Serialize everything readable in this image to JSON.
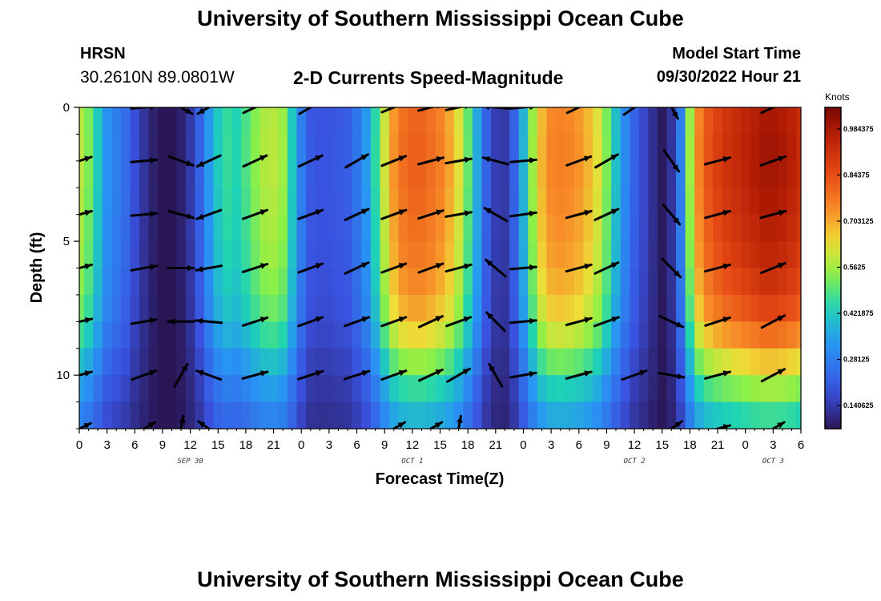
{
  "header": {
    "title": "University of Southern Mississippi Ocean Cube",
    "station": "HRSN",
    "coords": "30.2610N  89.0801W",
    "subtitle": "2-D Currents Speed-Magnitude",
    "model_start_label": "Model Start Time",
    "model_start_value": "09/30/2022 Hour 21"
  },
  "footer": {
    "title": "University of Southern Mississippi Ocean Cube"
  },
  "chart_data": {
    "type": "heatmap",
    "title": "2-D Currents Speed-Magnitude",
    "xlabel": "Forecast Time(Z)",
    "ylabel": "Depth (ft)",
    "xlim": [
      0,
      78
    ],
    "ylim": [
      12,
      0
    ],
    "x_ticks": [
      0,
      3,
      6,
      9,
      12,
      15,
      18,
      21,
      24,
      27,
      30,
      33,
      36,
      39,
      42,
      45,
      48,
      51,
      54,
      57,
      60,
      63,
      66,
      69,
      72,
      75,
      78
    ],
    "x_tick_labels": [
      "0",
      "3",
      "6",
      "9",
      "12",
      "15",
      "18",
      "21",
      "0",
      "3",
      "6",
      "9",
      "12",
      "15",
      "18",
      "21",
      "0",
      "3",
      "6",
      "9",
      "12",
      "15",
      "18",
      "21",
      "0",
      "3",
      "6"
    ],
    "y_ticks": [
      0,
      5,
      10
    ],
    "y_tick_labels": [
      "0",
      "5",
      "10"
    ],
    "date_labels": [
      {
        "text": "SEP 30",
        "hour": 12
      },
      {
        "text": "OCT 1",
        "hour": 36
      },
      {
        "text": "OCT 2",
        "hour": 60
      },
      {
        "text": "OCT 3",
        "hour": 75
      }
    ],
    "colorbar": {
      "unit": "Knots",
      "min": 0.07,
      "max": 1.05,
      "tick_values": [
        0.140625,
        0.28125,
        0.421875,
        0.5625,
        0.703125,
        0.84375,
        0.984375
      ],
      "tick_labels": [
        "0.140625",
        "0.28125",
        "0.421875",
        "0.5625",
        "0.703125",
        "0.84375",
        "0.984375"
      ]
    },
    "profile": [
      {
        "x": 0,
        "s": 0.58
      },
      {
        "x": 1,
        "s": 0.52
      },
      {
        "x": 2,
        "s": 0.42
      },
      {
        "x": 3,
        "s": 0.32
      },
      {
        "x": 4,
        "s": 0.28
      },
      {
        "x": 5,
        "s": 0.24
      },
      {
        "x": 6,
        "s": 0.18
      },
      {
        "x": 7,
        "s": 0.13
      },
      {
        "x": 8,
        "s": 0.09
      },
      {
        "x": 9,
        "s": 0.07
      },
      {
        "x": 10,
        "s": 0.07
      },
      {
        "x": 11,
        "s": 0.09
      },
      {
        "x": 12,
        "s": 0.14
      },
      {
        "x": 13,
        "s": 0.22
      },
      {
        "x": 14,
        "s": 0.33
      },
      {
        "x": 15,
        "s": 0.42
      },
      {
        "x": 16,
        "s": 0.46
      },
      {
        "x": 17,
        "s": 0.44
      },
      {
        "x": 18,
        "s": 0.48
      },
      {
        "x": 19,
        "s": 0.53
      },
      {
        "x": 20,
        "s": 0.57
      },
      {
        "x": 21,
        "s": 0.58
      },
      {
        "x": 22,
        "s": 0.55
      },
      {
        "x": 23,
        "s": 0.42
      },
      {
        "x": 24,
        "s": 0.28
      },
      {
        "x": 25,
        "s": 0.2
      },
      {
        "x": 26,
        "s": 0.19
      },
      {
        "x": 27,
        "s": 0.19
      },
      {
        "x": 28,
        "s": 0.2
      },
      {
        "x": 29,
        "s": 0.21
      },
      {
        "x": 30,
        "s": 0.26
      },
      {
        "x": 31,
        "s": 0.33
      },
      {
        "x": 32,
        "s": 0.45
      },
      {
        "x": 33,
        "s": 0.6
      },
      {
        "x": 34,
        "s": 0.72
      },
      {
        "x": 35,
        "s": 0.78
      },
      {
        "x": 36,
        "s": 0.8
      },
      {
        "x": 37,
        "s": 0.8
      },
      {
        "x": 38,
        "s": 0.78
      },
      {
        "x": 39,
        "s": 0.75
      },
      {
        "x": 40,
        "s": 0.7
      },
      {
        "x": 41,
        "s": 0.62
      },
      {
        "x": 42,
        "s": 0.5
      },
      {
        "x": 43,
        "s": 0.36
      },
      {
        "x": 44,
        "s": 0.22
      },
      {
        "x": 45,
        "s": 0.15
      },
      {
        "x": 46,
        "s": 0.14
      },
      {
        "x": 47,
        "s": 0.22
      },
      {
        "x": 48,
        "s": 0.38
      },
      {
        "x": 49,
        "s": 0.55
      },
      {
        "x": 50,
        "s": 0.68
      },
      {
        "x": 51,
        "s": 0.74
      },
      {
        "x": 52,
        "s": 0.75
      },
      {
        "x": 53,
        "s": 0.74
      },
      {
        "x": 54,
        "s": 0.72
      },
      {
        "x": 55,
        "s": 0.68
      },
      {
        "x": 56,
        "s": 0.62
      },
      {
        "x": 57,
        "s": 0.52
      },
      {
        "x": 58,
        "s": 0.4
      },
      {
        "x": 59,
        "s": 0.3
      },
      {
        "x": 60,
        "s": 0.22
      },
      {
        "x": 61,
        "s": 0.17
      },
      {
        "x": 62,
        "s": 0.12
      },
      {
        "x": 63,
        "s": 0.08
      },
      {
        "x": 64,
        "s": 0.13
      },
      {
        "x": 65,
        "s": 0.28
      },
      {
        "x": 66,
        "s": 0.55
      },
      {
        "x": 67,
        "s": 0.75
      },
      {
        "x": 68,
        "s": 0.83
      },
      {
        "x": 69,
        "s": 0.87
      },
      {
        "x": 70,
        "s": 0.9
      },
      {
        "x": 71,
        "s": 0.92
      },
      {
        "x": 72,
        "s": 0.94
      },
      {
        "x": 73,
        "s": 0.96
      },
      {
        "x": 74,
        "s": 0.98
      },
      {
        "x": 75,
        "s": 0.98
      },
      {
        "x": 76,
        "s": 0.97
      },
      {
        "x": 77,
        "s": 0.95
      },
      {
        "x": 78,
        "s": 0.92
      }
    ],
    "depth_factor": [
      {
        "depth": 0,
        "f": 1.0
      },
      {
        "depth": 2,
        "f": 1.02
      },
      {
        "depth": 4,
        "f": 0.99
      },
      {
        "depth": 6,
        "f": 0.95
      },
      {
        "depth": 8,
        "f": 0.85
      },
      {
        "depth": 9,
        "f": 0.72
      },
      {
        "depth": 10,
        "f": 0.6
      },
      {
        "depth": 11,
        "f": 0.48
      },
      {
        "depth": 12,
        "f": 0.4
      }
    ],
    "vectors": [
      {
        "x": 0,
        "depth": 2,
        "dir": 18
      },
      {
        "x": 0,
        "depth": 4,
        "dir": 15
      },
      {
        "x": 0,
        "depth": 6,
        "dir": 15
      },
      {
        "x": 0,
        "depth": 8,
        "dir": 12
      },
      {
        "x": 0,
        "depth": 10,
        "dir": 15
      },
      {
        "x": 0,
        "depth": 12,
        "dir": 25
      },
      {
        "x": 7,
        "depth": 0,
        "dir": 5
      },
      {
        "x": 7,
        "depth": 2,
        "dir": 5
      },
      {
        "x": 7,
        "depth": 4,
        "dir": 5
      },
      {
        "x": 7,
        "depth": 6,
        "dir": 10
      },
      {
        "x": 7,
        "depth": 8,
        "dir": 10
      },
      {
        "x": 7,
        "depth": 10,
        "dir": 20
      },
      {
        "x": 7,
        "depth": 12,
        "dir": 30
      },
      {
        "x": 11,
        "depth": 0,
        "dir": -30
      },
      {
        "x": 11,
        "depth": 2,
        "dir": -20
      },
      {
        "x": 11,
        "depth": 4,
        "dir": -15
      },
      {
        "x": 11,
        "depth": 6,
        "dir": 0
      },
      {
        "x": 11,
        "depth": 8,
        "dir": 180
      },
      {
        "x": 11,
        "depth": 10,
        "dir": 60
      },
      {
        "x": 11,
        "depth": 12,
        "dir": 80
      },
      {
        "x": 14,
        "depth": 0,
        "dir": -150
      },
      {
        "x": 14,
        "depth": 2,
        "dir": -155
      },
      {
        "x": 14,
        "depth": 4,
        "dir": -160
      },
      {
        "x": 14,
        "depth": 6,
        "dir": -170
      },
      {
        "x": 14,
        "depth": 8,
        "dir": 175
      },
      {
        "x": 14,
        "depth": 10,
        "dir": 160
      },
      {
        "x": 14,
        "depth": 12,
        "dir": 145
      },
      {
        "x": 19,
        "depth": 0,
        "dir": 25
      },
      {
        "x": 19,
        "depth": 2,
        "dir": 25
      },
      {
        "x": 19,
        "depth": 4,
        "dir": 20
      },
      {
        "x": 19,
        "depth": 6,
        "dir": 18
      },
      {
        "x": 19,
        "depth": 8,
        "dir": 18
      },
      {
        "x": 19,
        "depth": 10,
        "dir": 15
      },
      {
        "x": 25,
        "depth": 0,
        "dir": 30
      },
      {
        "x": 25,
        "depth": 2,
        "dir": 25
      },
      {
        "x": 25,
        "depth": 4,
        "dir": 20
      },
      {
        "x": 25,
        "depth": 6,
        "dir": 20
      },
      {
        "x": 25,
        "depth": 8,
        "dir": 20
      },
      {
        "x": 25,
        "depth": 10,
        "dir": 18
      },
      {
        "x": 30,
        "depth": 2,
        "dir": 30
      },
      {
        "x": 30,
        "depth": 4,
        "dir": 25
      },
      {
        "x": 30,
        "depth": 6,
        "dir": 25
      },
      {
        "x": 30,
        "depth": 8,
        "dir": 20
      },
      {
        "x": 30,
        "depth": 10,
        "dir": 18
      },
      {
        "x": 34,
        "depth": 0,
        "dir": 22
      },
      {
        "x": 34,
        "depth": 2,
        "dir": 22
      },
      {
        "x": 34,
        "depth": 4,
        "dir": 20
      },
      {
        "x": 34,
        "depth": 6,
        "dir": 20
      },
      {
        "x": 34,
        "depth": 8,
        "dir": 20
      },
      {
        "x": 34,
        "depth": 10,
        "dir": 20
      },
      {
        "x": 34,
        "depth": 12,
        "dir": 30
      },
      {
        "x": 38,
        "depth": 0,
        "dir": 15
      },
      {
        "x": 38,
        "depth": 2,
        "dir": 15
      },
      {
        "x": 38,
        "depth": 4,
        "dir": 18
      },
      {
        "x": 38,
        "depth": 6,
        "dir": 20
      },
      {
        "x": 38,
        "depth": 8,
        "dir": 25
      },
      {
        "x": 38,
        "depth": 10,
        "dir": 25
      },
      {
        "x": 38,
        "depth": 12,
        "dir": 30
      },
      {
        "x": 41,
        "depth": 0,
        "dir": 12
      },
      {
        "x": 41,
        "depth": 2,
        "dir": 10
      },
      {
        "x": 41,
        "depth": 4,
        "dir": 10
      },
      {
        "x": 41,
        "depth": 6,
        "dir": 15
      },
      {
        "x": 41,
        "depth": 8,
        "dir": 20
      },
      {
        "x": 41,
        "depth": 10,
        "dir": 30
      },
      {
        "x": 41,
        "depth": 12,
        "dir": 80
      },
      {
        "x": 45,
        "depth": 0,
        "dir": 175
      },
      {
        "x": 45,
        "depth": 2,
        "dir": 165
      },
      {
        "x": 45,
        "depth": 4,
        "dir": 150
      },
      {
        "x": 45,
        "depth": 6,
        "dir": 140
      },
      {
        "x": 45,
        "depth": 8,
        "dir": 135
      },
      {
        "x": 45,
        "depth": 10,
        "dir": 120
      },
      {
        "x": 48,
        "depth": 0,
        "dir": 5
      },
      {
        "x": 48,
        "depth": 2,
        "dir": 5
      },
      {
        "x": 48,
        "depth": 4,
        "dir": 8
      },
      {
        "x": 48,
        "depth": 6,
        "dir": 5
      },
      {
        "x": 48,
        "depth": 8,
        "dir": 5
      },
      {
        "x": 48,
        "depth": 10,
        "dir": 10
      },
      {
        "x": 54,
        "depth": 0,
        "dir": 25
      },
      {
        "x": 54,
        "depth": 2,
        "dir": 20
      },
      {
        "x": 54,
        "depth": 4,
        "dir": 15
      },
      {
        "x": 54,
        "depth": 6,
        "dir": 15
      },
      {
        "x": 54,
        "depth": 8,
        "dir": 15
      },
      {
        "x": 54,
        "depth": 10,
        "dir": 15
      },
      {
        "x": 57,
        "depth": 2,
        "dir": 30
      },
      {
        "x": 57,
        "depth": 4,
        "dir": 25
      },
      {
        "x": 57,
        "depth": 6,
        "dir": 25
      },
      {
        "x": 57,
        "depth": 8,
        "dir": 20
      },
      {
        "x": 60,
        "depth": 0,
        "dir": 35
      },
      {
        "x": 60,
        "depth": 10,
        "dir": 20
      },
      {
        "x": 64,
        "depth": 0,
        "dir": -60
      },
      {
        "x": 64,
        "depth": 2,
        "dir": -55
      },
      {
        "x": 64,
        "depth": 4,
        "dir": -50
      },
      {
        "x": 64,
        "depth": 6,
        "dir": -45
      },
      {
        "x": 64,
        "depth": 8,
        "dir": -25
      },
      {
        "x": 64,
        "depth": 10,
        "dir": -10
      },
      {
        "x": 64,
        "depth": 12,
        "dir": 35
      },
      {
        "x": 69,
        "depth": 2,
        "dir": 15
      },
      {
        "x": 69,
        "depth": 4,
        "dir": 15
      },
      {
        "x": 69,
        "depth": 6,
        "dir": 15
      },
      {
        "x": 69,
        "depth": 8,
        "dir": 18
      },
      {
        "x": 69,
        "depth": 10,
        "dir": 15
      },
      {
        "x": 69,
        "depth": 12,
        "dir": 15
      },
      {
        "x": 75,
        "depth": 0,
        "dir": 25
      },
      {
        "x": 75,
        "depth": 2,
        "dir": 20
      },
      {
        "x": 75,
        "depth": 4,
        "dir": 15
      },
      {
        "x": 75,
        "depth": 6,
        "dir": 22
      },
      {
        "x": 75,
        "depth": 8,
        "dir": 28
      },
      {
        "x": 75,
        "depth": 10,
        "dir": 28
      },
      {
        "x": 75,
        "depth": 12,
        "dir": 30
      }
    ]
  }
}
